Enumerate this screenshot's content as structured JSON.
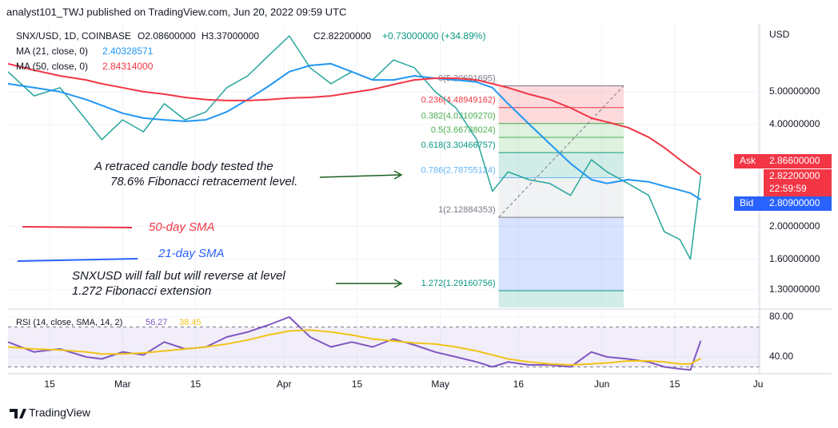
{
  "header": {
    "byline": "analyst101_TWJ published on TradingView.com, Jun 20, 2022 09:59 UTC"
  },
  "annotations": [
    {
      "lines": [
        "A retraced candle body tested the",
        "78.6% Fibonacci retracement level."
      ]
    },
    {
      "lines": [
        "50-day SMA"
      ]
    },
    {
      "lines": [
        "21-day SMA"
      ]
    },
    {
      "lines": [
        "SNXUSD  will fall but will reverse at level",
        "1.272 Fibonacci extension"
      ]
    }
  ],
  "footer": {
    "brand": "TradingView"
  },
  "chart_data": [
    {
      "type": "line",
      "log_scale": true,
      "grid": true,
      "axis_unit": "USD",
      "x": [
        38,
        43,
        48,
        53,
        56,
        60,
        64,
        68,
        72,
        76,
        80,
        84,
        88,
        92,
        96,
        100,
        104,
        108,
        112,
        116,
        120,
        124,
        128,
        131,
        134,
        138,
        142,
        146,
        150,
        153,
        157,
        161,
        164,
        167,
        169,
        171
      ],
      "xlim": [
        38,
        182.3
      ],
      "xticks": [
        {
          "value": 46,
          "label": "15"
        },
        {
          "value": 60,
          "label": "Mar"
        },
        {
          "value": 74,
          "label": "15"
        },
        {
          "value": 91,
          "label": "Apr"
        },
        {
          "value": 105,
          "label": "15"
        },
        {
          "value": 121,
          "label": "May"
        },
        {
          "value": 136,
          "label": "16"
        },
        {
          "value": 152,
          "label": "Jun"
        },
        {
          "value": 166,
          "label": "15"
        },
        {
          "value": 182,
          "label": "Ju"
        }
      ],
      "ylim": [
        1.153,
        7.93
      ],
      "yticks": [
        {
          "value": 5,
          "label": "5.00000000"
        },
        {
          "value": 4,
          "label": "4.00000000"
        },
        {
          "value": 2,
          "label": "2.00000000"
        },
        {
          "value": 1.6,
          "label": "1.60000000"
        },
        {
          "value": 1.3,
          "label": "1.30000000"
        }
      ],
      "series": [
        {
          "name": "SNX/USD, 1D, COINBASE",
          "color": "#26a69a",
          "values": [
            5.73,
            4.86,
            5.14,
            4.13,
            3.61,
            4.13,
            3.81,
            4.61,
            4.13,
            4.36,
            5.14,
            5.57,
            6.39,
            7.31,
            5.89,
            5.28,
            5.73,
            5.42,
            6.21,
            5.89,
            5.0,
            4.48,
            3.61,
            2.54,
            2.9,
            2.75,
            2.68,
            2.47,
            3.15,
            2.9,
            2.68,
            2.47,
            1.93,
            1.83,
            1.6,
            2.82
          ]
        },
        {
          "name": "MA (21, close, 0)",
          "color": "#2196f3",
          "values": [
            5.28,
            5.14,
            5.0,
            4.74,
            4.56,
            4.32,
            4.18,
            4.13,
            4.09,
            4.13,
            4.36,
            4.74,
            5.19,
            5.73,
            5.98,
            6.05,
            5.73,
            5.42,
            5.42,
            5.57,
            5.48,
            5.42,
            5.34,
            5.14,
            4.61,
            4.02,
            3.51,
            3.07,
            2.75,
            2.68,
            2.75,
            2.71,
            2.63,
            2.56,
            2.51,
            2.4
          ]
        },
        {
          "name": "MA (50, close, 0)",
          "color": "#f23645",
          "values": [
            6.05,
            5.79,
            5.57,
            5.42,
            5.28,
            5.14,
            5.0,
            4.92,
            4.81,
            4.74,
            4.71,
            4.71,
            4.74,
            4.79,
            4.81,
            4.86,
            4.97,
            5.08,
            5.25,
            5.42,
            5.48,
            5.48,
            5.42,
            5.28,
            5.14,
            4.92,
            4.74,
            4.48,
            4.18,
            4.07,
            3.92,
            3.67,
            3.42,
            3.15,
            2.99,
            2.84
          ]
        }
      ],
      "ohlc": [
        "O2.08600000",
        "H3.37000000",
        "C2.82200000",
        "+0.73000000 (+34.89%)"
      ],
      "ma_values": [
        "2.40328571",
        "2.84314000"
      ],
      "quote": {
        "ask_label": "Ask",
        "ask": "2.86600000",
        "last": "2.82200000",
        "countdown": "22:59:59",
        "bid_label": "Bid",
        "bid": "2.80900000"
      },
      "fib": {
        "x": [
          132.2,
          156.2
        ],
        "levels": [
          {
            "value": 5.20691695,
            "label": "0(5.20691695)",
            "color": "#787b86"
          },
          {
            "value": 4.48949162,
            "label": "0.236(4.48949162)",
            "color": "#f23645"
          },
          {
            "value": 4.0310927,
            "label": "0.382(4.03109270)",
            "color": "#4caf50"
          },
          {
            "value": 3.66788024,
            "label": "0.5(3.66788024)",
            "color": "#4caf50"
          },
          {
            "value": 3.30466757,
            "label": "0.618(3.30466757)",
            "color": "#089981"
          },
          {
            "value": 2.78755124,
            "label": "0.786(2.78755124)",
            "color": "#64b5f6"
          },
          {
            "value": 2.12884353,
            "label": "1(2.12884353)",
            "color": "#787b86"
          },
          {
            "value": 1.29160756,
            "label": "1.272(1.29160756)",
            "color": "#089981"
          }
        ],
        "zone_colors": [
          "#f23645",
          "#f23645",
          "#4caf50",
          "#4caf50",
          "#089981",
          "#b2b5be",
          "#2962ff",
          "#089981"
        ]
      }
    },
    {
      "type": "line",
      "grid": true,
      "x": [
        38,
        43,
        48,
        53,
        56,
        60,
        64,
        68,
        72,
        76,
        80,
        84,
        88,
        92,
        96,
        100,
        104,
        108,
        112,
        116,
        120,
        124,
        128,
        131,
        134,
        138,
        142,
        146,
        150,
        153,
        157,
        161,
        164,
        167,
        169,
        171
      ],
      "ylim": [
        25.6,
        85.6
      ],
      "yticks": [
        {
          "value": 80,
          "label": "80.00"
        },
        {
          "value": 40,
          "label": "40.00"
        }
      ],
      "band": [
        30,
        70
      ],
      "series": [
        {
          "name": "RSI (14, close, SMA, 14, 2)",
          "color": "#7e57c2",
          "values": [
            55,
            45,
            48,
            40,
            38,
            45,
            42,
            55,
            48,
            50,
            60,
            65,
            72,
            80,
            60,
            50,
            55,
            50,
            58,
            52,
            45,
            40,
            35,
            30,
            35,
            32,
            32,
            30,
            45,
            40,
            38,
            35,
            30,
            28,
            27,
            56.27
          ]
        },
        {
          "color": "#f0c419",
          "values": [
            50,
            48,
            47,
            45,
            43,
            43,
            44,
            46,
            48,
            50,
            53,
            57,
            62,
            66,
            67,
            65,
            62,
            58,
            56,
            54,
            53,
            50,
            46,
            42,
            38,
            35,
            33,
            32,
            33,
            34,
            36,
            36,
            35,
            33,
            33,
            38.45
          ]
        }
      ],
      "legend_values": [
        "56.27",
        "38.45"
      ]
    }
  ]
}
